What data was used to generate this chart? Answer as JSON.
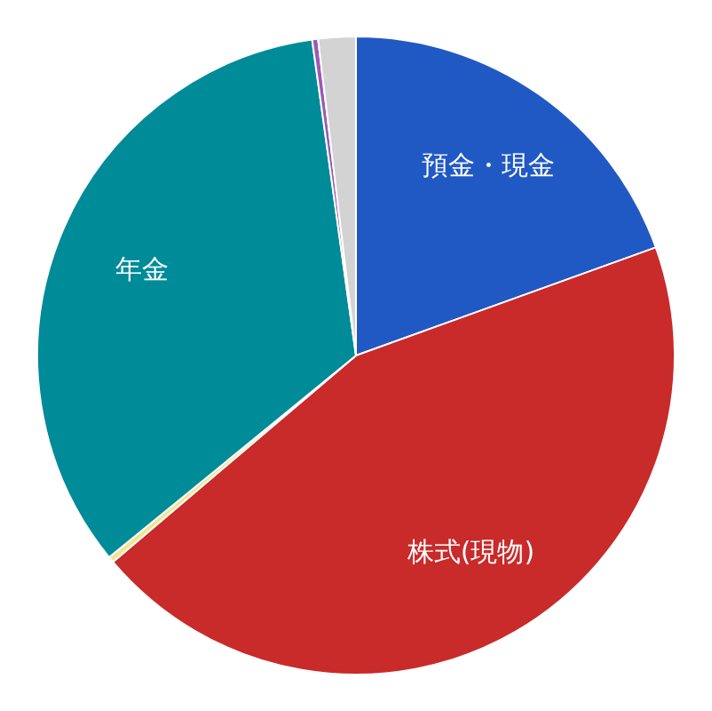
{
  "chart_data": {
    "type": "pie",
    "categories": [
      "預金・現金",
      "株式(現物)",
      null,
      "年金",
      null,
      null
    ],
    "values": [
      19.5,
      44.3,
      0.3,
      33.7,
      0.3,
      1.9
    ],
    "colors": [
      "#2159c4",
      "#c92a2a",
      "#f0e68c",
      "#008b99",
      "#9b59b6",
      "#d3d3d3"
    ],
    "legend": false
  }
}
